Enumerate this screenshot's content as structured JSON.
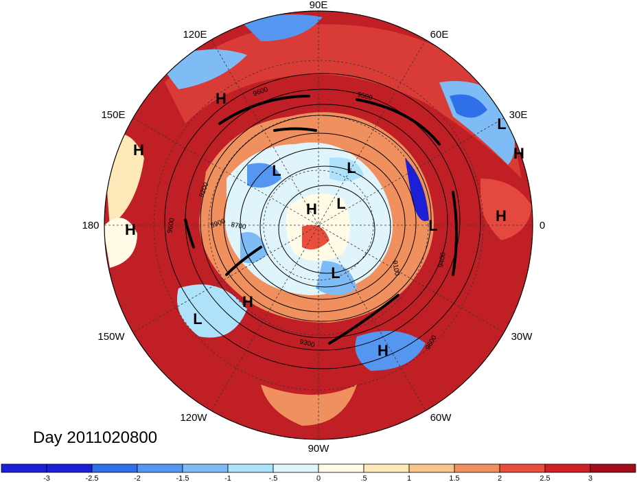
{
  "title": "Day 2011020800",
  "longitude_labels": {
    "e90": "90E",
    "e60": "60E",
    "e30": "30E",
    "zero": "0",
    "w30": "30W",
    "w60": "60W",
    "w90": "90W",
    "w120": "120W",
    "w150": "150W",
    "d180": "180",
    "e150": "150E",
    "e120": "120E"
  },
  "pressure_centers": [
    "H",
    "L",
    "L",
    "H",
    "L",
    "L",
    "L",
    "H",
    "H",
    "H",
    "H",
    "L",
    "H",
    "H",
    "L",
    "H"
  ],
  "contour_labels": [
    "9600",
    "9600",
    "9200",
    "8900",
    "8700",
    "9100",
    "9400",
    "9300",
    "9500",
    "9600"
  ],
  "colorbar": {
    "tick_labels": [
      "-3",
      "-2.5",
      "-2",
      "-1.5",
      "-1",
      "-.5",
      "0",
      ".5",
      "1",
      "1.5",
      "2",
      "2.5",
      "3"
    ],
    "colors": [
      "#1c1fd6",
      "#2f6fe8",
      "#5597f0",
      "#7fbcf5",
      "#aee2fb",
      "#dff5fb",
      "#fffbe6",
      "#fde8b8",
      "#f7c48a",
      "#f0905f",
      "#e94e3d",
      "#cf2027",
      "#a10d1b"
    ]
  }
}
